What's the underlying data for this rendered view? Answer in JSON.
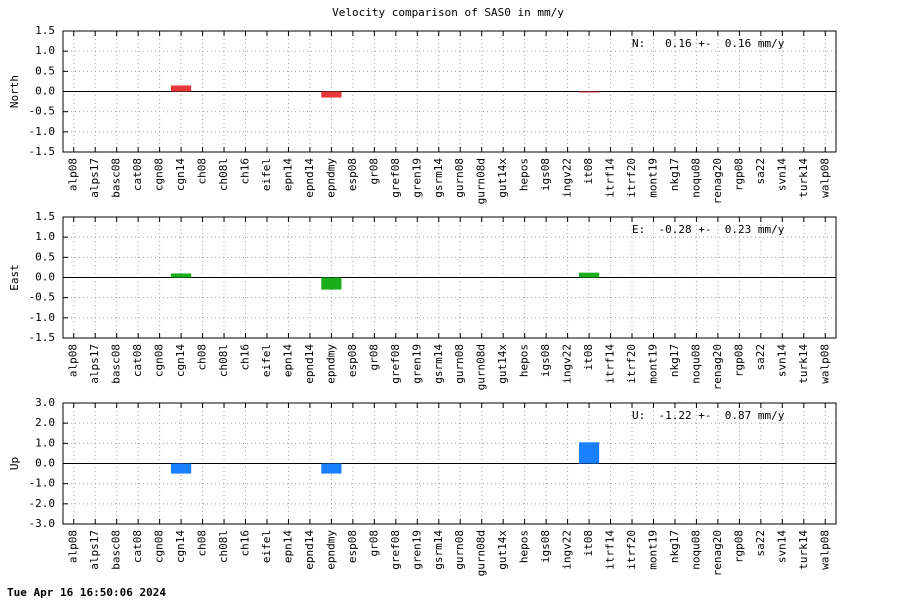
{
  "title": "Velocity comparison of SAS0 in mm/y",
  "footer": "Tue Apr 16 16:50:06 2024",
  "chart_data": [
    {
      "type": "bar",
      "ylabel": "North",
      "annotation": "N:   0.16 +-  0.16 mm/y",
      "color": "#e8383a",
      "grid": true,
      "categories": [
        "alp08",
        "alps17",
        "basc08",
        "cat08",
        "cgn08",
        "cgn14",
        "ch08",
        "ch08l",
        "ch16",
        "eifel",
        "epn14",
        "epnd14",
        "epndmy",
        "esp08",
        "gr08",
        "gref08",
        "gren19",
        "gsrm14",
        "gurn08",
        "gurn08d",
        "gut14x",
        "hepos",
        "igs08",
        "ingv22",
        "it08",
        "itrf14",
        "itrf20",
        "mont19",
        "nkg17",
        "noqu08",
        "renag20",
        "rgp08",
        "sa22",
        "svn14",
        "turk14",
        "walp08"
      ],
      "values": [
        null,
        null,
        null,
        null,
        null,
        0.15,
        null,
        null,
        null,
        null,
        null,
        null,
        -0.15,
        null,
        null,
        null,
        null,
        null,
        null,
        null,
        null,
        null,
        null,
        null,
        -0.02,
        null,
        null,
        null,
        null,
        null,
        null,
        null,
        null,
        null,
        null,
        null
      ],
      "ylim": [
        -1.5,
        1.5
      ],
      "yticks": [
        1.5,
        {
          "value": 1.0,
          "label": "1.0"
        },
        0.5,
        {
          "value": 0,
          "label": "0.0"
        },
        -0.5,
        {
          "value": -1.0,
          "label": "-1.0"
        },
        -1.5
      ]
    },
    {
      "type": "bar",
      "ylabel": "East",
      "annotation": "E:  -0.28 +-  0.23 mm/y",
      "color": "#1aae1a",
      "grid": true,
      "categories": [
        "alp08",
        "alps17",
        "basc08",
        "cat08",
        "cgn08",
        "cgn14",
        "ch08",
        "ch08l",
        "ch16",
        "eifel",
        "epn14",
        "epnd14",
        "epndmy",
        "esp08",
        "gr08",
        "gref08",
        "gren19",
        "gsrm14",
        "gurn08",
        "gurn08d",
        "gut14x",
        "hepos",
        "igs08",
        "ingv22",
        "it08",
        "itrf14",
        "itrf20",
        "mont19",
        "nkg17",
        "noqu08",
        "renag20",
        "rgp08",
        "sa22",
        "svn14",
        "turk14",
        "walp08"
      ],
      "values": [
        null,
        null,
        null,
        null,
        null,
        0.1,
        null,
        null,
        null,
        null,
        null,
        null,
        -0.3,
        null,
        null,
        null,
        null,
        null,
        null,
        null,
        null,
        null,
        null,
        null,
        0.12,
        null,
        null,
        null,
        null,
        null,
        null,
        null,
        null,
        null,
        null,
        null
      ],
      "ylim": [
        -1.5,
        1.5
      ],
      "yticks": [
        1.5,
        {
          "value": 1.0,
          "label": "1.0"
        },
        0.5,
        {
          "value": 0,
          "label": "0.0"
        },
        -0.5,
        {
          "value": -1.0,
          "label": "-1.0"
        },
        -1.5
      ]
    },
    {
      "type": "bar",
      "ylabel": "Up",
      "annotation": "U:  -1.22 +-  0.87 mm/y",
      "color": "#1a80ff",
      "grid": true,
      "categories": [
        "alp08",
        "alps17",
        "basc08",
        "cat08",
        "cgn08",
        "cgn14",
        "ch08",
        "ch08l",
        "ch16",
        "eifel",
        "epn14",
        "epnd14",
        "epndmy",
        "esp08",
        "gr08",
        "gref08",
        "gren19",
        "gsrm14",
        "gurn08",
        "gurn08d",
        "gut14x",
        "hepos",
        "igs08",
        "ingv22",
        "it08",
        "itrf14",
        "itrf20",
        "mont19",
        "nkg17",
        "noqu08",
        "renag20",
        "rgp08",
        "sa22",
        "svn14",
        "turk14",
        "walp08"
      ],
      "values": [
        null,
        null,
        null,
        null,
        null,
        -0.5,
        null,
        null,
        null,
        null,
        null,
        null,
        -0.5,
        null,
        null,
        null,
        null,
        null,
        null,
        null,
        null,
        null,
        null,
        null,
        1.05,
        null,
        null,
        null,
        null,
        null,
        null,
        null,
        null,
        null,
        null,
        null
      ],
      "ylim": [
        -3,
        3
      ],
      "yticks": [
        {
          "value": 3,
          "label": "3.0"
        },
        {
          "value": 2,
          "label": "2.0"
        },
        {
          "value": 1,
          "label": "1.0"
        },
        {
          "value": 0,
          "label": "0.0"
        },
        {
          "value": -1,
          "label": "-1.0"
        },
        {
          "value": -2,
          "label": "-2.0"
        },
        {
          "value": -3,
          "label": "-3.0"
        }
      ]
    }
  ]
}
